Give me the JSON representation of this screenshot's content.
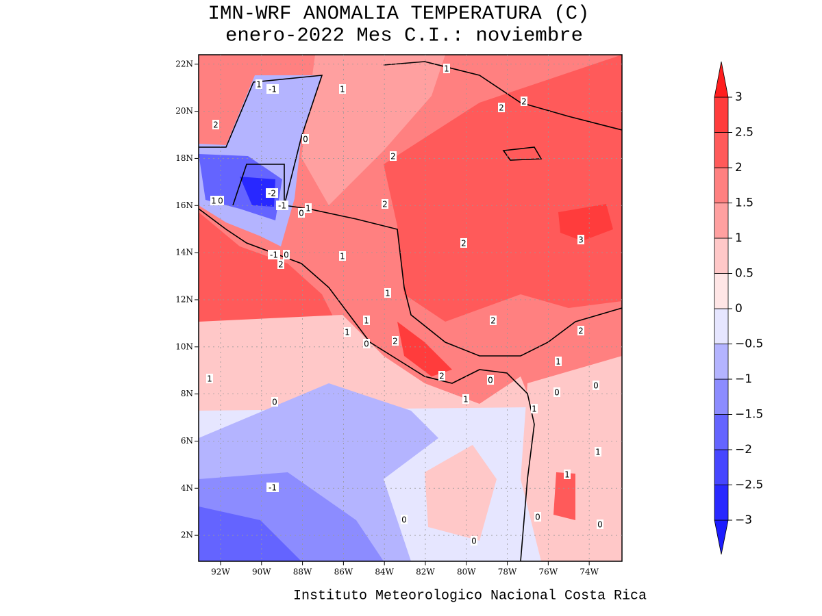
{
  "map": {
    "title": [
      "IMN-WRF  ANOMALIA TEMPERATURA (C)",
      "enero-2022 Mes C.I.: noviembre"
    ],
    "credit": "Instituto Meteorologico Nacional Costa Rica",
    "lonlim": [
      -93.07,
      -72.4
    ],
    "latlim": [
      0.9,
      22.4
    ],
    "lonticks": [
      {
        "value": -92,
        "label": "92W"
      },
      {
        "value": -90,
        "label": "90W"
      },
      {
        "value": -88,
        "label": "88W"
      },
      {
        "value": -86,
        "label": "86W"
      },
      {
        "value": -84,
        "label": "84W"
      },
      {
        "value": -82,
        "label": "82W"
      },
      {
        "value": -80,
        "label": "80W"
      },
      {
        "value": -78,
        "label": "78W"
      },
      {
        "value": -76,
        "label": "76W"
      },
      {
        "value": -74,
        "label": "74W"
      }
    ],
    "latticks": [
      {
        "value": 2,
        "label": "2N"
      },
      {
        "value": 4,
        "label": "4N"
      },
      {
        "value": 6,
        "label": "6N"
      },
      {
        "value": 8,
        "label": "8N"
      },
      {
        "value": 10,
        "label": "10N"
      },
      {
        "value": 12,
        "label": "12N"
      },
      {
        "value": 14,
        "label": "14N"
      },
      {
        "value": 16,
        "label": "16N"
      },
      {
        "value": 18,
        "label": "18N"
      },
      {
        "value": 20,
        "label": "20N"
      },
      {
        "value": 22,
        "label": "22N"
      }
    ],
    "grid": true,
    "colorbar": {
      "ticks": [
        {
          "value": -3,
          "label": "−3"
        },
        {
          "value": -2.5,
          "label": "−2.5"
        },
        {
          "value": -2,
          "label": "−2"
        },
        {
          "value": -1.5,
          "label": "−1.5"
        },
        {
          "value": -1,
          "label": "−1"
        },
        {
          "value": -0.5,
          "label": "−0.5"
        },
        0,
        0.5,
        1,
        1.5,
        2,
        2.5,
        3
      ],
      "colors": [
        "#1c1cff",
        "#2828ff",
        "#4646ff",
        "#6464ff",
        "#8c8cff",
        "#b4b4ff",
        "#e6e6ff",
        "#ffe6e6",
        "#ffc8c8",
        "#ffa0a0",
        "#ff8080",
        "#ff5a5a",
        "#ff3c3c",
        "#ff1e1e"
      ]
    },
    "contour_labels": [
      1,
      -1,
      1,
      1,
      2,
      2,
      2,
      0,
      2,
      -2,
      2,
      -1,
      1,
      0,
      1,
      0,
      2,
      3,
      -1,
      0,
      2,
      1,
      1,
      2,
      1,
      1,
      0,
      2,
      2,
      1,
      1,
      2,
      0,
      0,
      0,
      1,
      1,
      0,
      1,
      1,
      -1,
      0,
      0,
      0,
      0
    ]
  }
}
